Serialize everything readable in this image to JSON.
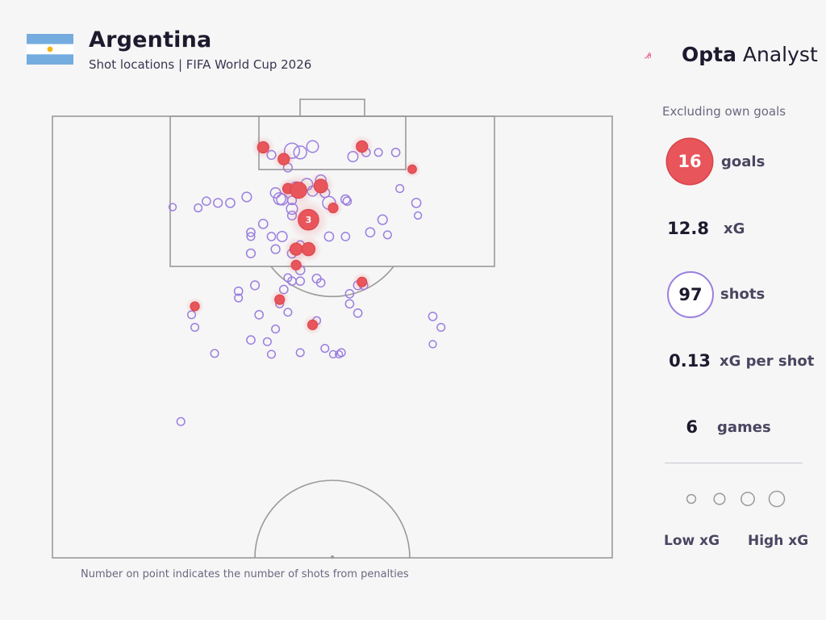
{
  "header": {
    "title": "Argentina",
    "subtitle": "Shot locations | FIFA World Cup 2026",
    "brand_bold": "Opta",
    "brand_rest": " Analyst"
  },
  "colors": {
    "goal": "#e8555b",
    "shot": "#9b7fe0",
    "pitch_line": "#9a9a9a",
    "flag_blue": "#74acdf",
    "flag_sun": "#f6b40e"
  },
  "footnote": "Number on point indicates the number of shots from penalties",
  "stats": {
    "note": "Excluding own goals",
    "goals_value": "16",
    "goals_label": "goals",
    "xg_value": "12.8",
    "xg_label": "xG",
    "shots_value": "97",
    "shots_label": "shots",
    "xg_per_shot_value": "0.13",
    "xg_per_shot_label": "xG per shot",
    "games_value": "6",
    "games_label": "games"
  },
  "legend": {
    "low_label": "Low xG",
    "high_label": "High xG",
    "sizes": [
      0.05,
      0.15,
      0.3,
      0.5
    ]
  },
  "chart_data": {
    "type": "scatter",
    "title": "Argentina",
    "subtitle": "Shot locations | FIFA World Cup 2026",
    "x_range": [
      0,
      68
    ],
    "y_range": [
      0,
      52.5
    ],
    "points": [
      {
        "x": 25.6,
        "y": 3.7,
        "xg": 0.14,
        "goal": true
      },
      {
        "x": 26.6,
        "y": 4.6,
        "xg": 0.05,
        "goal": false
      },
      {
        "x": 28.1,
        "y": 5.1,
        "xg": 0.14,
        "goal": true
      },
      {
        "x": 29.1,
        "y": 4.1,
        "xg": 0.32,
        "goal": false
      },
      {
        "x": 30.1,
        "y": 4.3,
        "xg": 0.2,
        "goal": false
      },
      {
        "x": 31.6,
        "y": 3.6,
        "xg": 0.15,
        "goal": false
      },
      {
        "x": 28.6,
        "y": 6.1,
        "xg": 0.05,
        "goal": false
      },
      {
        "x": 36.5,
        "y": 4.8,
        "xg": 0.09,
        "goal": false
      },
      {
        "x": 37.6,
        "y": 3.6,
        "xg": 0.14,
        "goal": true
      },
      {
        "x": 38.1,
        "y": 4.3,
        "xg": 0.04,
        "goal": false
      },
      {
        "x": 39.6,
        "y": 4.3,
        "xg": 0.03,
        "goal": false
      },
      {
        "x": 43.7,
        "y": 6.3,
        "xg": 0.05,
        "goal": true
      },
      {
        "x": 28.6,
        "y": 8.6,
        "xg": 0.1,
        "goal": true
      },
      {
        "x": 29.6,
        "y": 8.6,
        "xg": 0.22,
        "goal": false
      },
      {
        "x": 29.9,
        "y": 8.8,
        "xg": 0.4,
        "goal": true
      },
      {
        "x": 30.9,
        "y": 8.1,
        "xg": 0.15,
        "goal": false
      },
      {
        "x": 31.6,
        "y": 8.9,
        "xg": 0.09,
        "goal": false
      },
      {
        "x": 32.6,
        "y": 7.6,
        "xg": 0.1,
        "goal": false
      },
      {
        "x": 32.6,
        "y": 8.3,
        "xg": 0.24,
        "goal": true
      },
      {
        "x": 33.1,
        "y": 9.1,
        "xg": 0.07,
        "goal": false
      },
      {
        "x": 27.1,
        "y": 9.1,
        "xg": 0.09,
        "goal": false
      },
      {
        "x": 27.6,
        "y": 9.8,
        "xg": 0.16,
        "goal": false
      },
      {
        "x": 27.9,
        "y": 9.9,
        "xg": 0.12,
        "goal": false
      },
      {
        "x": 29.1,
        "y": 10.0,
        "xg": 0.05,
        "goal": false
      },
      {
        "x": 29.1,
        "y": 11.0,
        "xg": 0.12,
        "goal": false
      },
      {
        "x": 29.1,
        "y": 11.8,
        "xg": 0.05,
        "goal": false
      },
      {
        "x": 33.6,
        "y": 10.3,
        "xg": 0.2,
        "goal": false
      },
      {
        "x": 34.1,
        "y": 10.9,
        "xg": 0.08,
        "goal": true
      },
      {
        "x": 35.6,
        "y": 9.9,
        "xg": 0.06,
        "goal": false
      },
      {
        "x": 35.8,
        "y": 10.1,
        "xg": 0.04,
        "goal": false
      },
      {
        "x": 31.1,
        "y": 12.3,
        "xg": 0.76,
        "goal": true,
        "penalties": "3"
      },
      {
        "x": 23.6,
        "y": 9.6,
        "xg": 0.07,
        "goal": false
      },
      {
        "x": 18.7,
        "y": 10.1,
        "xg": 0.04,
        "goal": false
      },
      {
        "x": 20.1,
        "y": 10.3,
        "xg": 0.05,
        "goal": false
      },
      {
        "x": 21.6,
        "y": 10.3,
        "xg": 0.06,
        "goal": false
      },
      {
        "x": 17.7,
        "y": 10.9,
        "xg": 0.03,
        "goal": false
      },
      {
        "x": 25.6,
        "y": 12.8,
        "xg": 0.06,
        "goal": false
      },
      {
        "x": 24.1,
        "y": 13.8,
        "xg": 0.04,
        "goal": false
      },
      {
        "x": 24.1,
        "y": 14.3,
        "xg": 0.03,
        "goal": false
      },
      {
        "x": 26.6,
        "y": 14.3,
        "xg": 0.04,
        "goal": false
      },
      {
        "x": 27.9,
        "y": 14.3,
        "xg": 0.09,
        "goal": false
      },
      {
        "x": 27.1,
        "y": 15.8,
        "xg": 0.05,
        "goal": false
      },
      {
        "x": 24.1,
        "y": 16.3,
        "xg": 0.05,
        "goal": false
      },
      {
        "x": 29.6,
        "y": 15.8,
        "xg": 0.18,
        "goal": true
      },
      {
        "x": 31.1,
        "y": 15.8,
        "xg": 0.22,
        "goal": true
      },
      {
        "x": 29.1,
        "y": 16.3,
        "xg": 0.06,
        "goal": false
      },
      {
        "x": 30.1,
        "y": 15.3,
        "xg": 0.04,
        "goal": false
      },
      {
        "x": 33.6,
        "y": 14.3,
        "xg": 0.06,
        "goal": false
      },
      {
        "x": 35.6,
        "y": 14.3,
        "xg": 0.04,
        "goal": false
      },
      {
        "x": 38.6,
        "y": 13.8,
        "xg": 0.06,
        "goal": false
      },
      {
        "x": 40.7,
        "y": 14.1,
        "xg": 0.03,
        "goal": false
      },
      {
        "x": 40.1,
        "y": 12.3,
        "xg": 0.07,
        "goal": false
      },
      {
        "x": 29.6,
        "y": 17.7,
        "xg": 0.08,
        "goal": true
      },
      {
        "x": 30.1,
        "y": 18.3,
        "xg": 0.06,
        "goal": false
      },
      {
        "x": 28.6,
        "y": 19.2,
        "xg": 0.03,
        "goal": false
      },
      {
        "x": 29.1,
        "y": 19.6,
        "xg": 0.04,
        "goal": false
      },
      {
        "x": 30.1,
        "y": 19.6,
        "xg": 0.04,
        "goal": false
      },
      {
        "x": 32.1,
        "y": 19.3,
        "xg": 0.05,
        "goal": false
      },
      {
        "x": 32.6,
        "y": 19.8,
        "xg": 0.04,
        "goal": false
      },
      {
        "x": 24.6,
        "y": 20.1,
        "xg": 0.05,
        "goal": false
      },
      {
        "x": 28.1,
        "y": 20.6,
        "xg": 0.04,
        "goal": false
      },
      {
        "x": 22.6,
        "y": 20.8,
        "xg": 0.04,
        "goal": false
      },
      {
        "x": 22.6,
        "y": 21.6,
        "xg": 0.03,
        "goal": false
      },
      {
        "x": 27.6,
        "y": 21.8,
        "xg": 0.08,
        "goal": true
      },
      {
        "x": 27.6,
        "y": 22.3,
        "xg": 0.03,
        "goal": false
      },
      {
        "x": 36.1,
        "y": 21.1,
        "xg": 0.04,
        "goal": false
      },
      {
        "x": 37.1,
        "y": 20.1,
        "xg": 0.05,
        "goal": false
      },
      {
        "x": 37.6,
        "y": 19.7,
        "xg": 0.08,
        "goal": true
      },
      {
        "x": 37.8,
        "y": 20.1,
        "xg": 0.04,
        "goal": false
      },
      {
        "x": 36.1,
        "y": 22.3,
        "xg": 0.04,
        "goal": false
      },
      {
        "x": 37.1,
        "y": 23.4,
        "xg": 0.04,
        "goal": false
      },
      {
        "x": 17.3,
        "y": 22.6,
        "xg": 0.06,
        "goal": true
      },
      {
        "x": 16.9,
        "y": 23.6,
        "xg": 0.03,
        "goal": false
      },
      {
        "x": 25.1,
        "y": 23.6,
        "xg": 0.04,
        "goal": false
      },
      {
        "x": 28.6,
        "y": 23.3,
        "xg": 0.03,
        "goal": false
      },
      {
        "x": 31.6,
        "y": 24.8,
        "xg": 0.08,
        "goal": true
      },
      {
        "x": 32.1,
        "y": 24.3,
        "xg": 0.03,
        "goal": false
      },
      {
        "x": 17.3,
        "y": 25.1,
        "xg": 0.03,
        "goal": false
      },
      {
        "x": 27.1,
        "y": 25.3,
        "xg": 0.03,
        "goal": false
      },
      {
        "x": 24.1,
        "y": 26.6,
        "xg": 0.04,
        "goal": false
      },
      {
        "x": 26.1,
        "y": 26.8,
        "xg": 0.03,
        "goal": false
      },
      {
        "x": 19.7,
        "y": 28.2,
        "xg": 0.03,
        "goal": false
      },
      {
        "x": 26.6,
        "y": 28.3,
        "xg": 0.03,
        "goal": false
      },
      {
        "x": 30.1,
        "y": 28.1,
        "xg": 0.03,
        "goal": false
      },
      {
        "x": 33.1,
        "y": 27.6,
        "xg": 0.03,
        "goal": false
      },
      {
        "x": 35.1,
        "y": 28.1,
        "xg": 0.03,
        "goal": false
      },
      {
        "x": 34.1,
        "y": 28.3,
        "xg": 0.02,
        "goal": false
      },
      {
        "x": 34.8,
        "y": 28.3,
        "xg": 0.02,
        "goal": false
      },
      {
        "x": 46.2,
        "y": 23.8,
        "xg": 0.04,
        "goal": false
      },
      {
        "x": 47.2,
        "y": 25.1,
        "xg": 0.03,
        "goal": false
      },
      {
        "x": 46.2,
        "y": 27.1,
        "xg": 0.02,
        "goal": false
      },
      {
        "x": 42.2,
        "y": 8.6,
        "xg": 0.03,
        "goal": false
      },
      {
        "x": 44.2,
        "y": 10.3,
        "xg": 0.06,
        "goal": false
      },
      {
        "x": 44.4,
        "y": 11.8,
        "xg": 0.02,
        "goal": false
      },
      {
        "x": 41.7,
        "y": 4.3,
        "xg": 0.04,
        "goal": false
      },
      {
        "x": 15.6,
        "y": 36.3,
        "xg": 0.03,
        "goal": false
      },
      {
        "x": 14.6,
        "y": 10.8,
        "xg": 0.02,
        "goal": false
      }
    ]
  }
}
